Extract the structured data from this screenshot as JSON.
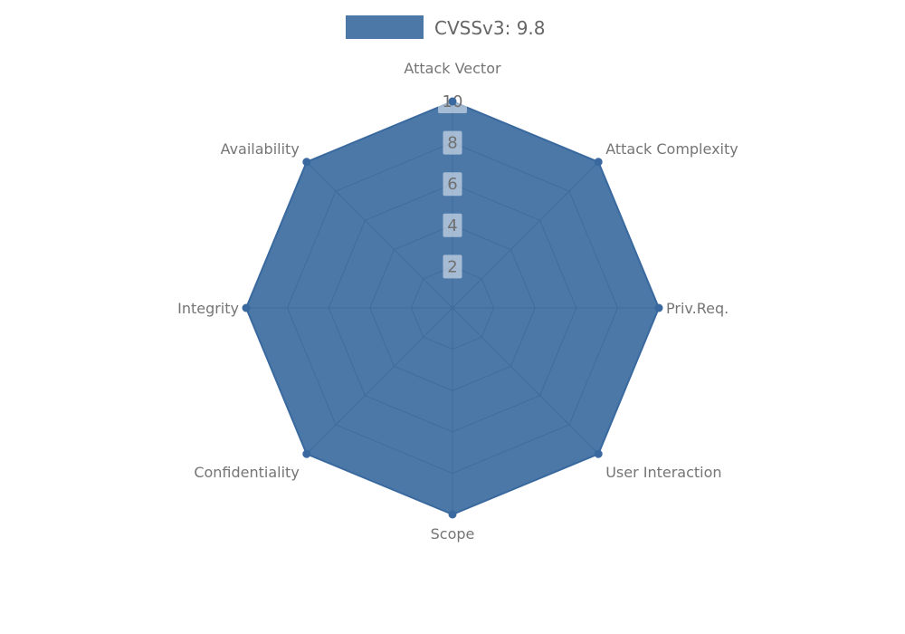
{
  "page": {
    "background": "#ffffff"
  },
  "legend": {
    "label": "CVSSv3: 9.8"
  },
  "chart_data": {
    "type": "radar",
    "title": "CVSSv3: 9.8",
    "axes": [
      "Attack Vector",
      "Attack Complexity",
      "Priv.Req.",
      "User Interaction",
      "Scope",
      "Confidentiality",
      "Integrity",
      "Availability"
    ],
    "series": [
      {
        "name": "CVSSv3: 9.8",
        "values": [
          10,
          10,
          10,
          10,
          10,
          10,
          10,
          10
        ]
      }
    ],
    "r_ticks": [
      2,
      4,
      6,
      8,
      10
    ],
    "rlim": [
      0,
      10
    ],
    "grid": true,
    "legend_position": "top",
    "start_angle_deg": 90,
    "direction": "clockwise",
    "colors": {
      "series_base": "#39699e",
      "fill_opacity": 0.9,
      "rendered_fill": "#4d7aa8",
      "grid_line": "#808080",
      "axis_label": "#757575",
      "tick_label": "#6f6f6f",
      "tick_box": "rgba(255,255,255,0.5)",
      "legend_text": "#666666"
    }
  }
}
